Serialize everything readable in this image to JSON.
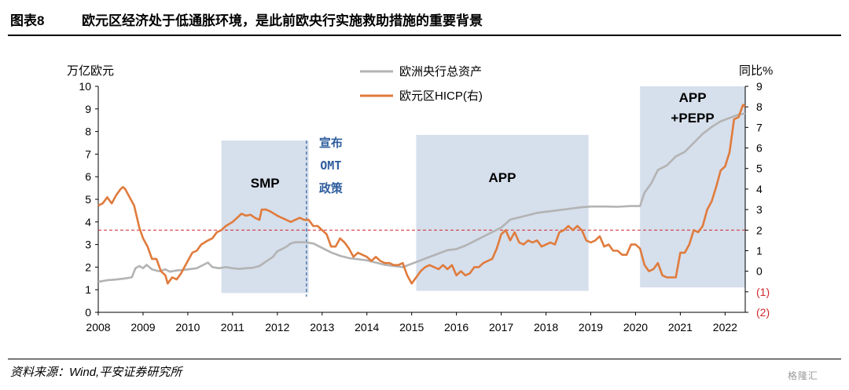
{
  "header": {
    "figure_label": "图表8",
    "title": "欧元区经济处于低通胀环境，是此前欧央行实施救助措施的重要背景"
  },
  "footer": {
    "source": "资料来源：Wind,平安证券研究所",
    "watermark": "格隆汇"
  },
  "chart_data": {
    "type": "line",
    "title": "欧元区经济处于低通胀环境，是此前欧央行实施救助措施的重要背景",
    "x_tick_labels": [
      "2008",
      "2009",
      "2010",
      "2011",
      "2012",
      "2013",
      "2014",
      "2015",
      "2016",
      "2017",
      "2018",
      "2019",
      "2020",
      "2021",
      "2022"
    ],
    "xlim": [
      2008.0,
      2022.45
    ],
    "left_axis": {
      "label": "万亿欧元",
      "ylim": [
        0,
        10
      ],
      "ticks": [
        "0",
        "1",
        "2",
        "3",
        "4",
        "5",
        "6",
        "7",
        "8",
        "9",
        "10"
      ]
    },
    "right_axis": {
      "label": "同比%",
      "ylim": [
        -2,
        9
      ],
      "ticks": [
        "(2)",
        "(1)",
        "0",
        "1",
        "2",
        "3",
        "4",
        "5",
        "6",
        "7",
        "8",
        "9"
      ]
    },
    "reference_line": {
      "axis": "right",
      "value": 2,
      "color": "#d0262e",
      "style": "dashed"
    },
    "legend": {
      "placement": "top-center",
      "entries": [
        "欧洲央行总资产",
        "欧元区HICP(右)"
      ]
    },
    "shaded_periods": [
      {
        "label": "SMP",
        "start": 2010.75,
        "end": 2012.7,
        "y_top": 7.6,
        "y_bottom": 0.85
      },
      {
        "label": "APP",
        "start": 2015.1,
        "end": 2018.95,
        "y_top": 7.85,
        "y_bottom": 0.95
      },
      {
        "label_lines": [
          "APP",
          "+PEPP"
        ],
        "start": 2020.1,
        "end": 2022.45,
        "y_top": 10.0,
        "y_bottom": 1.1
      }
    ],
    "vertical_annotation": {
      "x": 2012.65,
      "style": "dashed",
      "color": "#2f5f9e",
      "lines": [
        "宣布",
        "OMT",
        "政策"
      ]
    },
    "series": [
      {
        "name": "欧洲央行总资产",
        "axis": "left",
        "color": "#b3b3b3",
        "points": [
          [
            2008.0,
            1.35
          ],
          [
            2008.2,
            1.42
          ],
          [
            2008.4,
            1.45
          ],
          [
            2008.6,
            1.5
          ],
          [
            2008.75,
            1.55
          ],
          [
            2008.83,
            1.95
          ],
          [
            2008.92,
            2.05
          ],
          [
            2009.0,
            1.95
          ],
          [
            2009.08,
            2.1
          ],
          [
            2009.2,
            1.9
          ],
          [
            2009.35,
            1.82
          ],
          [
            2009.5,
            1.9
          ],
          [
            2009.6,
            1.8
          ],
          [
            2009.75,
            1.85
          ],
          [
            2009.9,
            1.88
          ],
          [
            2010.0,
            1.9
          ],
          [
            2010.2,
            1.95
          ],
          [
            2010.35,
            2.1
          ],
          [
            2010.45,
            2.2
          ],
          [
            2010.55,
            2.0
          ],
          [
            2010.7,
            1.95
          ],
          [
            2010.85,
            2.0
          ],
          [
            2011.0,
            1.95
          ],
          [
            2011.15,
            1.92
          ],
          [
            2011.3,
            1.95
          ],
          [
            2011.45,
            1.97
          ],
          [
            2011.6,
            2.05
          ],
          [
            2011.75,
            2.25
          ],
          [
            2011.9,
            2.45
          ],
          [
            2012.0,
            2.7
          ],
          [
            2012.1,
            2.8
          ],
          [
            2012.2,
            2.9
          ],
          [
            2012.3,
            3.05
          ],
          [
            2012.4,
            3.1
          ],
          [
            2012.6,
            3.1
          ],
          [
            2012.8,
            3.05
          ],
          [
            2013.0,
            2.85
          ],
          [
            2013.2,
            2.65
          ],
          [
            2013.4,
            2.5
          ],
          [
            2013.6,
            2.4
          ],
          [
            2013.8,
            2.35
          ],
          [
            2014.0,
            2.3
          ],
          [
            2014.2,
            2.2
          ],
          [
            2014.4,
            2.1
          ],
          [
            2014.6,
            2.05
          ],
          [
            2014.8,
            2.0
          ],
          [
            2015.0,
            2.15
          ],
          [
            2015.2,
            2.3
          ],
          [
            2015.4,
            2.45
          ],
          [
            2015.6,
            2.6
          ],
          [
            2015.8,
            2.75
          ],
          [
            2016.0,
            2.8
          ],
          [
            2016.2,
            2.95
          ],
          [
            2016.4,
            3.15
          ],
          [
            2016.6,
            3.35
          ],
          [
            2016.8,
            3.55
          ],
          [
            2017.0,
            3.75
          ],
          [
            2017.2,
            4.1
          ],
          [
            2017.4,
            4.2
          ],
          [
            2017.6,
            4.3
          ],
          [
            2017.8,
            4.4
          ],
          [
            2018.0,
            4.45
          ],
          [
            2018.2,
            4.5
          ],
          [
            2018.4,
            4.55
          ],
          [
            2018.6,
            4.6
          ],
          [
            2018.8,
            4.65
          ],
          [
            2019.0,
            4.68
          ],
          [
            2019.3,
            4.68
          ],
          [
            2019.6,
            4.67
          ],
          [
            2019.9,
            4.7
          ],
          [
            2020.1,
            4.7
          ],
          [
            2020.2,
            5.3
          ],
          [
            2020.35,
            5.7
          ],
          [
            2020.5,
            6.3
          ],
          [
            2020.7,
            6.5
          ],
          [
            2020.9,
            6.9
          ],
          [
            2021.1,
            7.1
          ],
          [
            2021.3,
            7.5
          ],
          [
            2021.5,
            7.9
          ],
          [
            2021.7,
            8.2
          ],
          [
            2021.9,
            8.45
          ],
          [
            2022.1,
            8.6
          ],
          [
            2022.3,
            8.75
          ],
          [
            2022.45,
            8.8
          ]
        ]
      },
      {
        "name": "欧元区HICP(右)",
        "axis": "right",
        "color": "#e07b3c",
        "points": [
          [
            2008.0,
            3.2
          ],
          [
            2008.1,
            3.3
          ],
          [
            2008.2,
            3.6
          ],
          [
            2008.3,
            3.3
          ],
          [
            2008.4,
            3.7
          ],
          [
            2008.5,
            4.0
          ],
          [
            2008.55,
            4.1
          ],
          [
            2008.6,
            4.0
          ],
          [
            2008.7,
            3.6
          ],
          [
            2008.8,
            3.2
          ],
          [
            2008.92,
            2.1
          ],
          [
            2009.0,
            1.6
          ],
          [
            2009.1,
            1.2
          ],
          [
            2009.2,
            0.6
          ],
          [
            2009.3,
            0.6
          ],
          [
            2009.4,
            0.0
          ],
          [
            2009.5,
            -0.2
          ],
          [
            2009.55,
            -0.6
          ],
          [
            2009.65,
            -0.3
          ],
          [
            2009.75,
            -0.4
          ],
          [
            2009.85,
            -0.1
          ],
          [
            2010.0,
            0.5
          ],
          [
            2010.1,
            0.9
          ],
          [
            2010.2,
            1.0
          ],
          [
            2010.3,
            1.3
          ],
          [
            2010.45,
            1.5
          ],
          [
            2010.55,
            1.6
          ],
          [
            2010.65,
            1.9
          ],
          [
            2010.75,
            2.0
          ],
          [
            2010.85,
            2.2
          ],
          [
            2011.0,
            2.4
          ],
          [
            2011.1,
            2.6
          ],
          [
            2011.2,
            2.8
          ],
          [
            2011.3,
            2.7
          ],
          [
            2011.4,
            2.75
          ],
          [
            2011.5,
            2.6
          ],
          [
            2011.6,
            2.5
          ],
          [
            2011.65,
            3.0
          ],
          [
            2011.75,
            3.0
          ],
          [
            2011.85,
            2.9
          ],
          [
            2012.0,
            2.7
          ],
          [
            2012.1,
            2.6
          ],
          [
            2012.2,
            2.5
          ],
          [
            2012.3,
            2.4
          ],
          [
            2012.4,
            2.5
          ],
          [
            2012.5,
            2.6
          ],
          [
            2012.6,
            2.5
          ],
          [
            2012.7,
            2.5
          ],
          [
            2012.8,
            2.2
          ],
          [
            2012.9,
            2.2
          ],
          [
            2013.0,
            2.0
          ],
          [
            2013.1,
            1.8
          ],
          [
            2013.2,
            1.2
          ],
          [
            2013.3,
            1.2
          ],
          [
            2013.4,
            1.6
          ],
          [
            2013.5,
            1.4
          ],
          [
            2013.6,
            1.1
          ],
          [
            2013.7,
            0.7
          ],
          [
            2013.8,
            0.9
          ],
          [
            2013.9,
            0.8
          ],
          [
            2014.0,
            0.7
          ],
          [
            2014.1,
            0.5
          ],
          [
            2014.2,
            0.7
          ],
          [
            2014.3,
            0.5
          ],
          [
            2014.4,
            0.4
          ],
          [
            2014.5,
            0.4
          ],
          [
            2014.6,
            0.3
          ],
          [
            2014.7,
            0.3
          ],
          [
            2014.8,
            0.4
          ],
          [
            2014.9,
            -0.2
          ],
          [
            2015.0,
            -0.6
          ],
          [
            2015.1,
            -0.3
          ],
          [
            2015.2,
            0.0
          ],
          [
            2015.3,
            0.2
          ],
          [
            2015.4,
            0.3
          ],
          [
            2015.5,
            0.2
          ],
          [
            2015.6,
            0.1
          ],
          [
            2015.7,
            0.3
          ],
          [
            2015.8,
            0.1
          ],
          [
            2015.9,
            0.3
          ],
          [
            2016.0,
            -0.2
          ],
          [
            2016.1,
            0.0
          ],
          [
            2016.2,
            -0.2
          ],
          [
            2016.3,
            -0.1
          ],
          [
            2016.4,
            0.2
          ],
          [
            2016.5,
            0.2
          ],
          [
            2016.6,
            0.4
          ],
          [
            2016.7,
            0.5
          ],
          [
            2016.8,
            0.6
          ],
          [
            2016.9,
            1.1
          ],
          [
            2017.0,
            1.8
          ],
          [
            2017.1,
            2.0
          ],
          [
            2017.2,
            1.5
          ],
          [
            2017.3,
            1.9
          ],
          [
            2017.4,
            1.4
          ],
          [
            2017.5,
            1.3
          ],
          [
            2017.6,
            1.5
          ],
          [
            2017.7,
            1.4
          ],
          [
            2017.8,
            1.5
          ],
          [
            2017.9,
            1.2
          ],
          [
            2018.0,
            1.3
          ],
          [
            2018.1,
            1.4
          ],
          [
            2018.2,
            1.3
          ],
          [
            2018.3,
            1.9
          ],
          [
            2018.4,
            2.0
          ],
          [
            2018.5,
            2.2
          ],
          [
            2018.6,
            2.0
          ],
          [
            2018.7,
            2.2
          ],
          [
            2018.8,
            2.0
          ],
          [
            2018.9,
            1.5
          ],
          [
            2019.0,
            1.4
          ],
          [
            2019.1,
            1.5
          ],
          [
            2019.2,
            1.7
          ],
          [
            2019.3,
            1.2
          ],
          [
            2019.4,
            1.3
          ],
          [
            2019.5,
            1.0
          ],
          [
            2019.6,
            1.0
          ],
          [
            2019.7,
            0.8
          ],
          [
            2019.8,
            0.8
          ],
          [
            2019.9,
            1.3
          ],
          [
            2020.0,
            1.3
          ],
          [
            2020.1,
            1.1
          ],
          [
            2020.2,
            0.3
          ],
          [
            2020.3,
            0.0
          ],
          [
            2020.4,
            0.1
          ],
          [
            2020.5,
            0.4
          ],
          [
            2020.6,
            -0.2
          ],
          [
            2020.7,
            -0.3
          ],
          [
            2020.8,
            -0.3
          ],
          [
            2020.9,
            -0.3
          ],
          [
            2021.0,
            0.9
          ],
          [
            2021.1,
            0.9
          ],
          [
            2021.2,
            1.3
          ],
          [
            2021.3,
            2.0
          ],
          [
            2021.4,
            1.9
          ],
          [
            2021.5,
            2.2
          ],
          [
            2021.6,
            3.0
          ],
          [
            2021.7,
            3.4
          ],
          [
            2021.8,
            4.1
          ],
          [
            2021.9,
            4.9
          ],
          [
            2022.0,
            5.1
          ],
          [
            2022.1,
            5.8
          ],
          [
            2022.2,
            7.4
          ],
          [
            2022.3,
            7.5
          ],
          [
            2022.4,
            8.1
          ],
          [
            2022.45,
            8.0
          ]
        ]
      }
    ]
  }
}
